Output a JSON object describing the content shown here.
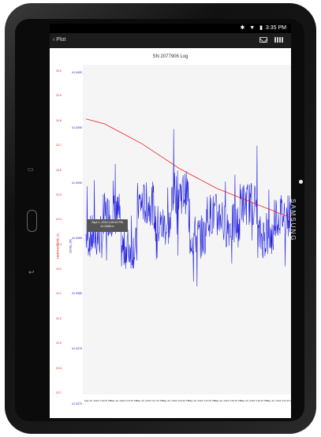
{
  "device": {
    "brand": "SAMSUNG"
  },
  "statusbar": {
    "icons": "✱ ▼ ▮",
    "time": "3:35 PM"
  },
  "actionbar": {
    "back_label": "‹ Plot",
    "mail_icon": "mail-icon",
    "grid_icon": "grid-icon"
  },
  "plot": {
    "title": "SN 2077906 Log",
    "tooltip_line1": "Sept 1, 2019 3:25:22 PM",
    "tooltip_line2": "41.5388 m"
  },
  "chart_data": {
    "type": "line",
    "title": "SN 2077906 Log",
    "x_tick_labels": [
      "May 29, 2018 3:18:45 PM",
      "May 29, 2018 3:24:45 PM",
      "May 29, 2018 3:27:45 PM",
      "May 29, 2018 3:30:45 PM",
      "May 29, 2018 3:33:45 PM",
      "May 29, 2018 3:36:45 PM",
      "May 29, 2018 3:39:45 PM",
      "May 29, 2018 3:42:45 PM"
    ],
    "left_axis": {
      "label": "TEMPERATURE (C)",
      "ticks": [
        "23.7",
        "23.8",
        "23.9",
        "24.0",
        "24.1",
        "24.2",
        "24.3",
        "24.4",
        "24.5",
        "24.6",
        "24.7",
        "24.8",
        "24.9",
        "25.0"
      ]
    },
    "right_axis": {
      "label": "LEVEL (M)",
      "ticks": [
        "41.5370",
        "41.5375",
        "41.5380",
        "41.5385",
        "41.5390",
        "41.5395",
        "41.5400"
      ]
    },
    "series": [
      {
        "color": "#e02020",
        "values": [
          24.8,
          24.78,
          24.74,
          24.7,
          24.65,
          24.6,
          24.56,
          24.52,
          24.49,
          24.46,
          24.43,
          24.4
        ]
      },
      {
        "color": "#2020d0",
        "values": [
          41.5385,
          41.5387,
          41.5384,
          41.5388,
          41.5386,
          41.5389,
          41.5385,
          41.5387,
          41.5386,
          41.5388,
          41.5385,
          41.5387
        ]
      }
    ]
  }
}
